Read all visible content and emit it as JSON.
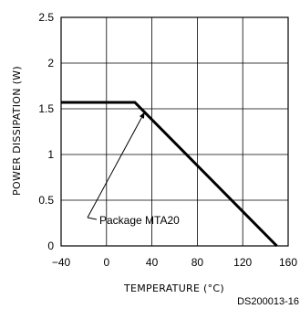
{
  "chart_data": {
    "type": "line",
    "xlabel": "TEMPERATURE (°C)",
    "ylabel": "POWER DISSIPATION (W)",
    "xlim": [
      -40,
      160
    ],
    "ylim": [
      0,
      2.5
    ],
    "x_ticks": [
      -40,
      0,
      40,
      80,
      120,
      160
    ],
    "x_tick_labels": [
      "−40",
      "0",
      "40",
      "80",
      "120",
      "160"
    ],
    "y_ticks": [
      0,
      0.5,
      1,
      1.5,
      2,
      2.5
    ],
    "y_tick_labels": [
      "0",
      "0.5",
      "1",
      "1.5",
      "2",
      "2.5"
    ],
    "grid": true,
    "series": [
      {
        "x": [
          -40,
          25,
          150
        ],
        "y": [
          1.57,
          1.57,
          0
        ]
      }
    ],
    "annotations": [
      {
        "text": "Package MTA20",
        "points_to": {
          "x": 35,
          "y": 1.5
        }
      }
    ]
  },
  "figure_code": "DS200013-16"
}
